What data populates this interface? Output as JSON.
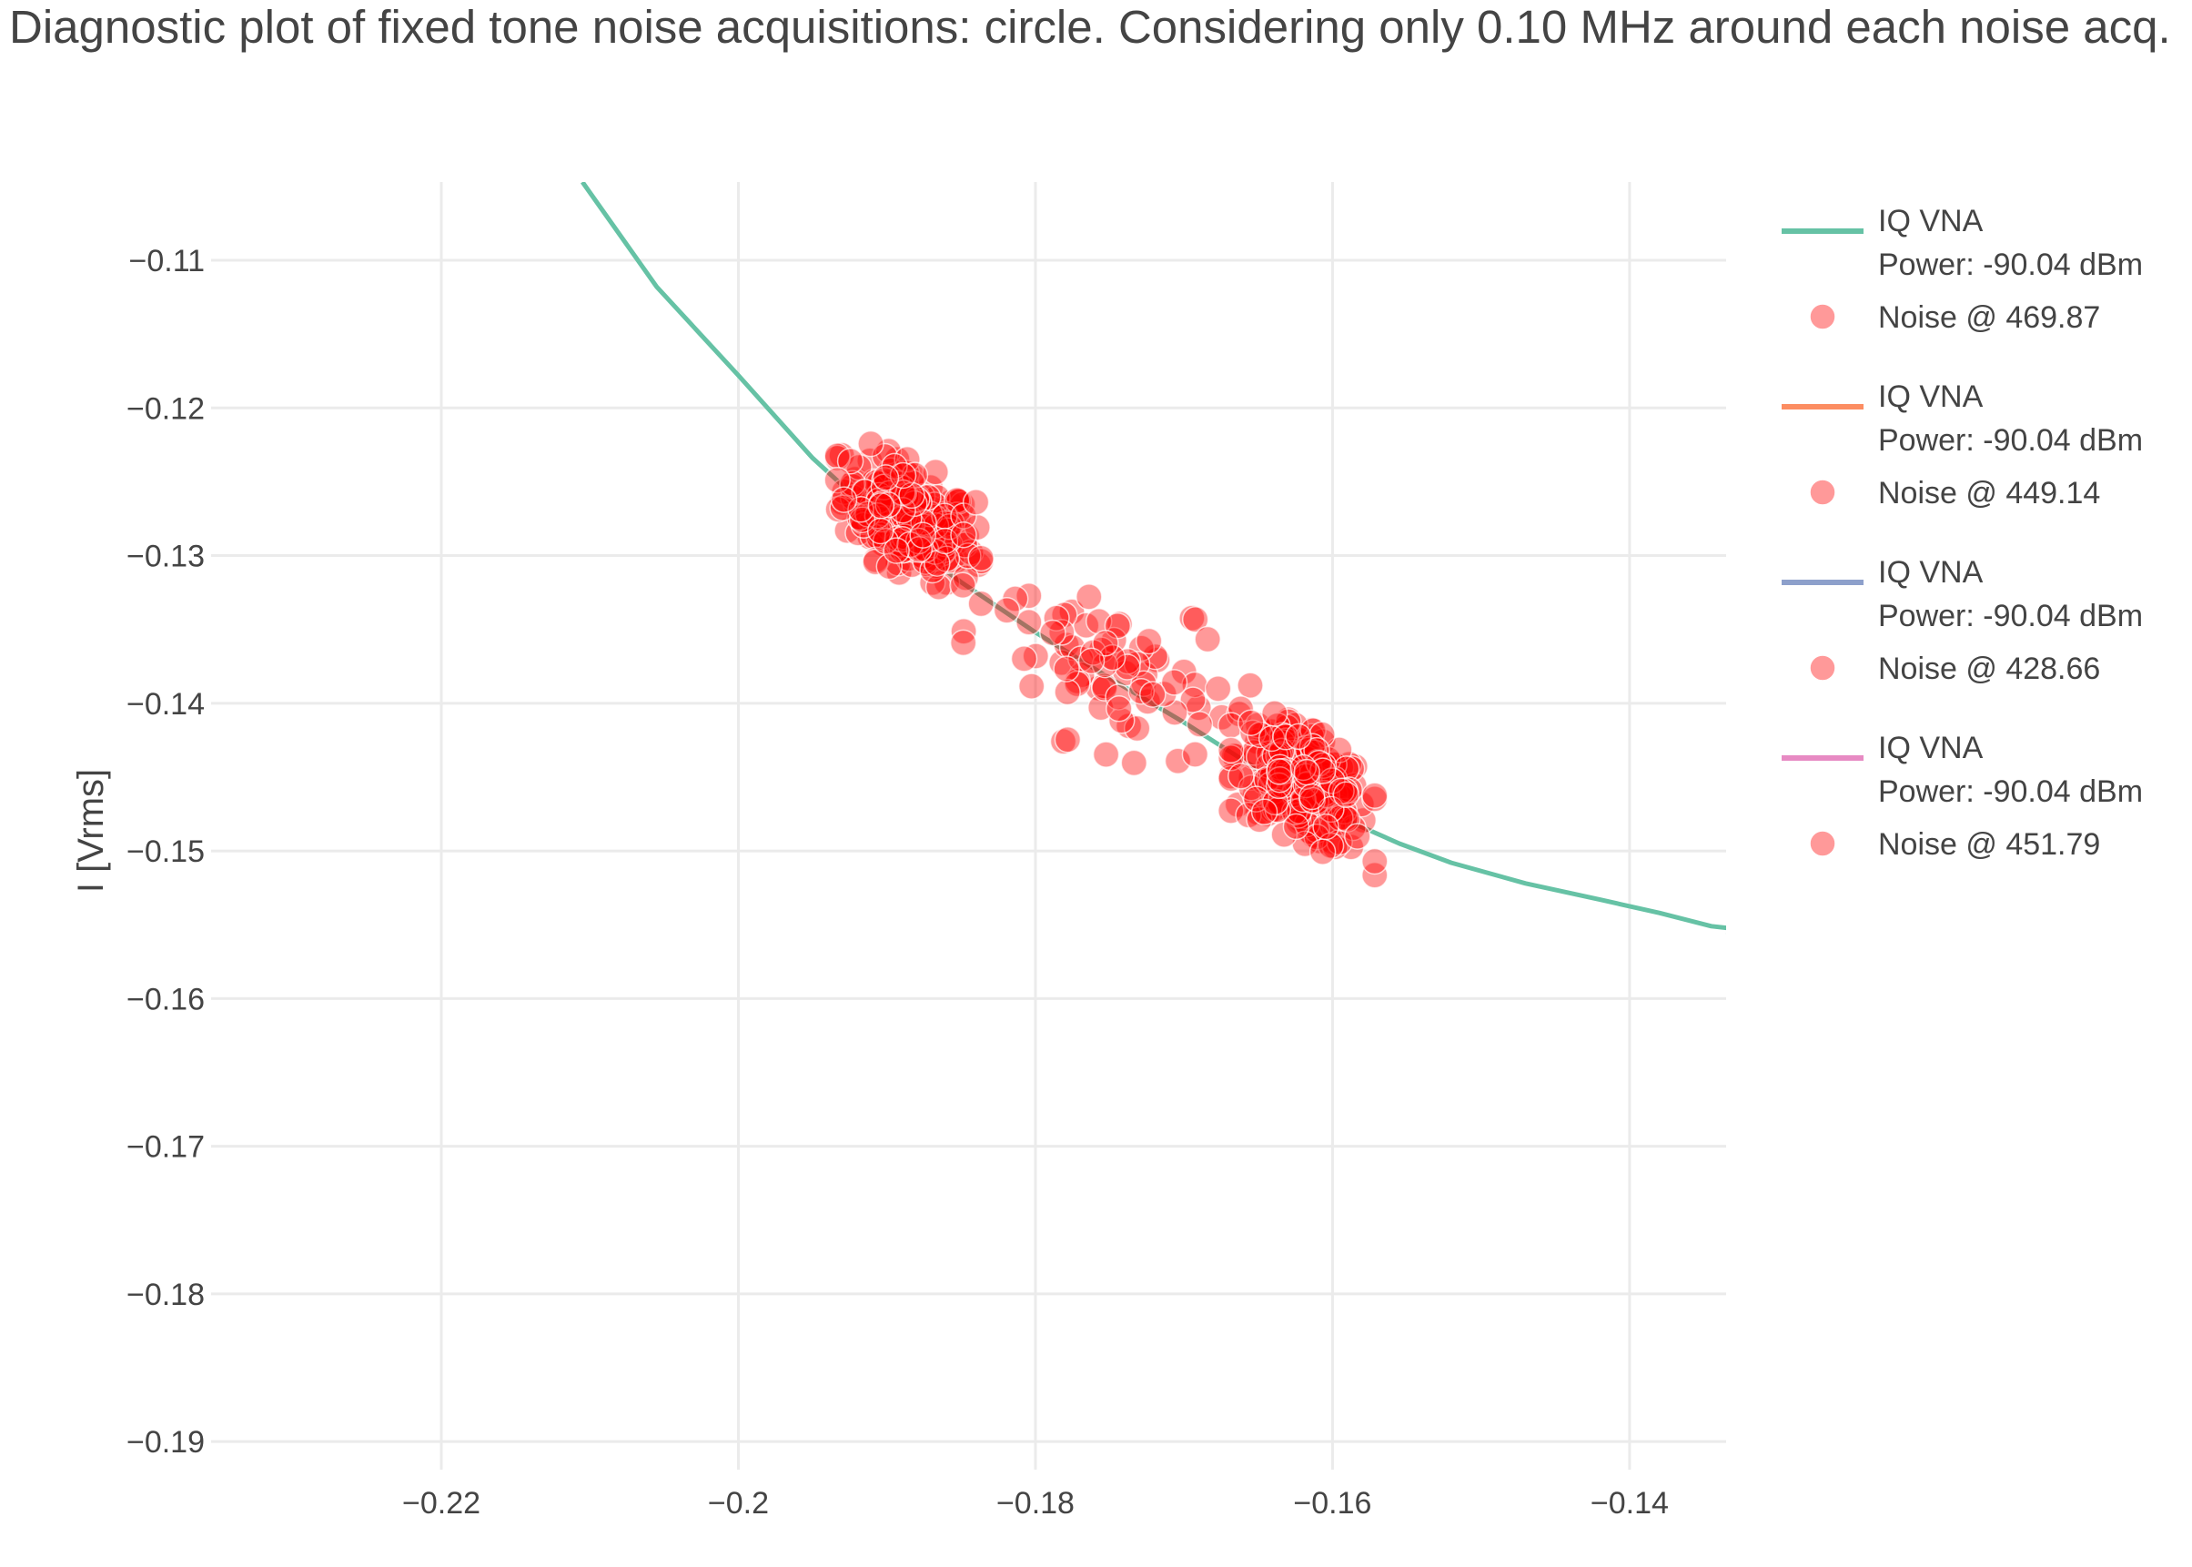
{
  "chart_data": {
    "type": "scatter",
    "title": "Diagnostic plot of fixed tone noise acquisitions: circle. Considering only 0.10 MHz around each noise acq.",
    "xlabel": "",
    "ylabel": "I [Vrms]",
    "xlim": [
      -0.2355,
      -0.1335
    ],
    "ylim": [
      -0.1919,
      -0.1047
    ],
    "x_ticks": [
      -0.22,
      -0.2,
      -0.18,
      -0.16,
      -0.14
    ],
    "x_tick_labels": [
      "−0.22",
      "−0.2",
      "−0.18",
      "−0.16",
      "−0.14"
    ],
    "y_ticks": [
      -0.11,
      -0.12,
      -0.13,
      -0.14,
      -0.15,
      -0.16,
      -0.17,
      -0.18,
      -0.19
    ],
    "y_tick_labels": [
      "−0.11",
      "−0.12",
      "−0.13",
      "−0.14",
      "−0.15",
      "−0.16",
      "−0.17",
      "−0.18",
      "−0.19"
    ],
    "grid": true,
    "legend_position": "right",
    "line_series": [
      {
        "name_line1": "IQ VNA",
        "name_line2": "Power: -90.04 dBm",
        "color": "#66c2a5",
        "x": [
          -0.2105,
          -0.2055,
          -0.2,
          -0.195,
          -0.19,
          -0.185,
          -0.18,
          -0.175,
          -0.17,
          -0.165,
          -0.16,
          -0.1555,
          -0.152,
          -0.147,
          -0.142,
          -0.138,
          -0.1345,
          -0.13,
          -0.1335
        ],
        "y": [
          -0.1047,
          -0.1118,
          -0.1178,
          -0.1234,
          -0.128,
          -0.1318,
          -0.1352,
          -0.1383,
          -0.1413,
          -0.1445,
          -0.1475,
          -0.1495,
          -0.1508,
          -0.1522,
          -0.1533,
          -0.1542,
          -0.1551,
          -0.1556,
          -0.1557
        ]
      },
      {
        "name_line1": "IQ VNA",
        "name_line2": "Power: -90.04 dBm",
        "color": "#fc8d62",
        "x": [],
        "y": []
      },
      {
        "name_line1": "IQ VNA",
        "name_line2": "Power: -90.04 dBm",
        "color": "#8da0cb",
        "x": [],
        "y": []
      },
      {
        "name_line1": "IQ VNA",
        "name_line2": "Power: -90.04 dBm",
        "color": "#e78ac3",
        "x": [],
        "y": []
      }
    ],
    "noise_series": [
      {
        "name": "Noise @ 469.87",
        "color": "#ff0000",
        "opacity": 0.4,
        "center": [
          -0.1885,
          -0.1275
        ],
        "spread": [
          0.0022,
          0.0018
        ],
        "count": 260
      },
      {
        "name": "Noise @ 449.14",
        "color": "#ff0000",
        "opacity": 0.4,
        "center": [
          -0.1735,
          -0.1385
        ],
        "spread": [
          0.0045,
          0.0025
        ],
        "count": 45
      },
      {
        "name": "Noise @ 428.66",
        "color": "#ff0000",
        "opacity": 0.4,
        "center": [
          -0.162,
          -0.1455
        ],
        "spread": [
          0.0022,
          0.0018
        ],
        "count": 260
      },
      {
        "name": "Noise @ 451.79",
        "color": "#ff0000",
        "opacity": 0.4,
        "center": [
          -0.1765,
          -0.1375
        ],
        "spread": [
          0.004,
          0.002
        ],
        "count": 35
      }
    ]
  }
}
